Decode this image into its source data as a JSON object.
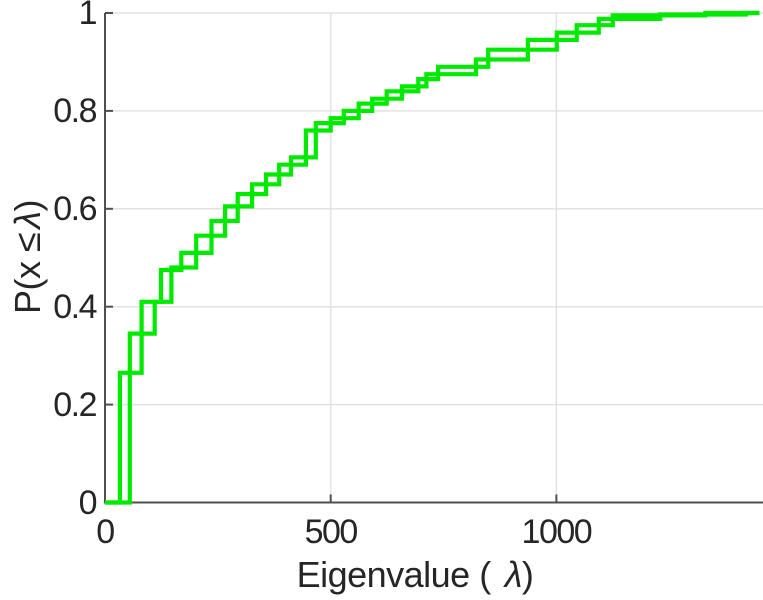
{
  "chart_data": {
    "type": "line",
    "subtype": "empirical-cdf-stairs",
    "title": "",
    "xlabel": "Eigenvalue ( λ)",
    "ylabel": "P(x ≤ λ)",
    "xlim": [
      0,
      1450
    ],
    "ylim": [
      0,
      1
    ],
    "grid": "on",
    "legend": "none",
    "line_color": "#00ea00",
    "grid_color": "#e2e2e2",
    "axis_color": "#4f4f4f",
    "text_color": "#262626",
    "xticks": [
      {
        "value": 0,
        "label": "0"
      },
      {
        "value": 500,
        "label": "500"
      },
      {
        "value": 1000,
        "label": "1000"
      }
    ],
    "yticks": [
      {
        "value": 0,
        "label": "0"
      },
      {
        "value": 0.2,
        "label": "0.2"
      },
      {
        "value": 0.4,
        "label": "0.4"
      },
      {
        "value": 0.6,
        "label": "0.6"
      },
      {
        "value": 0.8,
        "label": "0.8"
      },
      {
        "value": 1,
        "label": "1"
      }
    ],
    "series": [
      {
        "name": "ecdf-stair-1",
        "type": "stairs",
        "start": [
          0,
          0
        ],
        "steps": [
          [
            33,
            0.265
          ],
          [
            81,
            0.41
          ],
          [
            124,
            0.475
          ],
          [
            169,
            0.51
          ],
          [
            236,
            0.575
          ],
          [
            294,
            0.63
          ],
          [
            357,
            0.67
          ],
          [
            412,
            0.705
          ],
          [
            467,
            0.775
          ],
          [
            529,
            0.8
          ],
          [
            592,
            0.825
          ],
          [
            658,
            0.85
          ],
          [
            712,
            0.875
          ],
          [
            822,
            0.905
          ],
          [
            937,
            0.945
          ],
          [
            1045,
            0.975
          ],
          [
            1125,
            0.995
          ],
          [
            1330,
            1.0
          ]
        ],
        "end_x": 1450
      },
      {
        "name": "ecdf-stair-2",
        "type": "stairs",
        "start": [
          0,
          0
        ],
        "steps": [
          [
            55,
            0.345
          ],
          [
            110,
            0.41
          ],
          [
            147,
            0.48
          ],
          [
            202,
            0.545
          ],
          [
            266,
            0.605
          ],
          [
            326,
            0.65
          ],
          [
            386,
            0.69
          ],
          [
            445,
            0.76
          ],
          [
            500,
            0.785
          ],
          [
            562,
            0.815
          ],
          [
            624,
            0.84
          ],
          [
            694,
            0.865
          ],
          [
            738,
            0.89
          ],
          [
            849,
            0.925
          ],
          [
            1001,
            0.96
          ],
          [
            1094,
            0.988
          ],
          [
            1230,
            0.997
          ],
          [
            1420,
            1.0
          ]
        ],
        "end_x": 1450
      }
    ]
  },
  "labels": {
    "xlabel_prefix": "Eigenvalue (",
    "xlabel_lambda": "λ",
    "xlabel_suffix": ")",
    "ylabel_prefix": "P(x ≤",
    "ylabel_lambda": "λ",
    "ylabel_suffix": ")"
  }
}
